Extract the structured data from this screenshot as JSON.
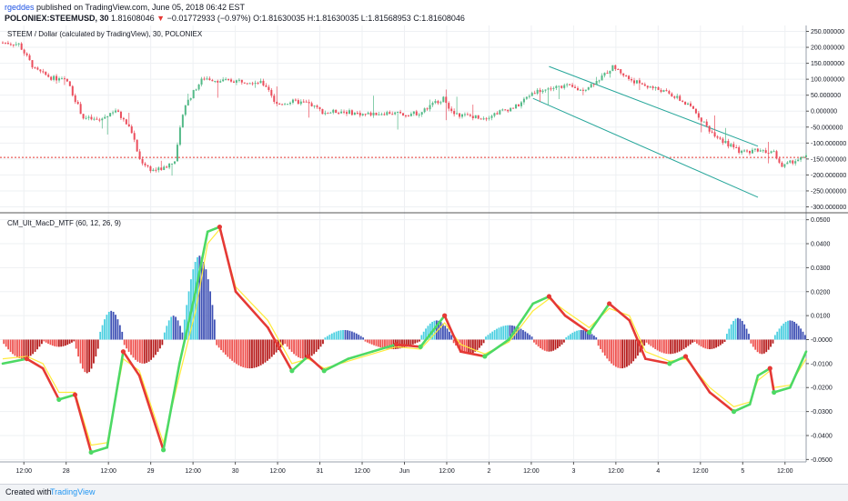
{
  "header": {
    "author": "rgeddes",
    "published_text": "published on TradingView.com, June 05, 2018 06:42 EST",
    "symbol": "POLONIEX:STEEMUSD, 30",
    "price": "1.81608046",
    "arrow": "▼",
    "change": "−0.01772933 (−0.97%)",
    "ohlc": "O:1.81630035 H:1.81630035 L:1.81568953 C:1.81608046"
  },
  "footer": {
    "created_with": "Created with",
    "logo": "TradingView"
  },
  "colors": {
    "up": "#53b987",
    "down": "#eb4d5c",
    "macd_up": "#4cd964",
    "macd_down": "#e53935",
    "signal": "#ffeb3b",
    "hist_pos_dark": "#3f51b5",
    "hist_pos_light": "#4dd0e1",
    "hist_neg_dark": "#b71c1c",
    "hist_neg_light": "#ef5350",
    "channel": "#26a69a",
    "price_line": "#e53935"
  },
  "chart_data": [
    {
      "type": "candlestick",
      "title": "STEEM / Dollar (calculated by TradingView), 30, POLONIEX",
      "y_tick_labels": [
        "250.000000",
        "200.000000",
        "150.000000",
        "100.000000",
        "50.000000",
        "0.000000",
        "-50.000000",
        "-100.000000",
        "-150.000000",
        "-200.000000",
        "-250.000000",
        "-300.000000"
      ],
      "ylim": [
        -310,
        260
      ],
      "price_line": -145,
      "trend_channel": {
        "upper": [
          [
            0.68,
            140
          ],
          [
            0.94,
            -110
          ]
        ],
        "lower": [
          [
            0.66,
            40
          ],
          [
            0.94,
            -270
          ]
        ]
      },
      "close_path": [
        [
          0.0,
          215
        ],
        [
          0.02,
          210
        ],
        [
          0.04,
          130
        ],
        [
          0.06,
          105
        ],
        [
          0.08,
          95
        ],
        [
          0.1,
          -20
        ],
        [
          0.12,
          -30
        ],
        [
          0.14,
          5
        ],
        [
          0.16,
          -60
        ],
        [
          0.17,
          -150
        ],
        [
          0.185,
          -185
        ],
        [
          0.2,
          -180
        ],
        [
          0.215,
          -150
        ],
        [
          0.225,
          10
        ],
        [
          0.24,
          70
        ],
        [
          0.25,
          105
        ],
        [
          0.27,
          95
        ],
        [
          0.3,
          95
        ],
        [
          0.32,
          90
        ],
        [
          0.33,
          75
        ],
        [
          0.34,
          20
        ],
        [
          0.36,
          30
        ],
        [
          0.38,
          25
        ],
        [
          0.4,
          -5
        ],
        [
          0.42,
          0
        ],
        [
          0.45,
          -10
        ],
        [
          0.48,
          -5
        ],
        [
          0.5,
          -10
        ],
        [
          0.52,
          -5
        ],
        [
          0.54,
          30
        ],
        [
          0.55,
          40
        ],
        [
          0.56,
          -10
        ],
        [
          0.58,
          -15
        ],
        [
          0.6,
          -20
        ],
        [
          0.62,
          0
        ],
        [
          0.64,
          15
        ],
        [
          0.66,
          60
        ],
        [
          0.68,
          70
        ],
        [
          0.7,
          80
        ],
        [
          0.72,
          65
        ],
        [
          0.74,
          95
        ],
        [
          0.76,
          140
        ],
        [
          0.78,
          100
        ],
        [
          0.8,
          80
        ],
        [
          0.82,
          65
        ],
        [
          0.84,
          40
        ],
        [
          0.86,
          5
        ],
        [
          0.88,
          -60
        ],
        [
          0.9,
          -100
        ],
        [
          0.92,
          -130
        ],
        [
          0.94,
          -120
        ],
        [
          0.96,
          -130
        ],
        [
          0.97,
          -175
        ],
        [
          0.985,
          -155
        ],
        [
          1.0,
          -145
        ]
      ]
    },
    {
      "type": "line",
      "title": "CM_Ult_MacD_MTF (60, 12, 26, 9)",
      "y_tick_labels": [
        "0.0500",
        "0.0400",
        "0.0300",
        "0.0200",
        "0.0100",
        "-0.0000",
        "-0.0100",
        "-0.0200",
        "-0.0300",
        "-0.0400",
        "-0.0500"
      ],
      "ylim": [
        -0.051,
        0.051
      ],
      "x_tick_labels": [
        "12:00",
        "28",
        "12:00",
        "29",
        "12:00",
        "30",
        "12:00",
        "31",
        "12:00",
        "Jun",
        "12:00",
        "2",
        "12:00",
        "3",
        "12:00",
        "4",
        "12:00",
        "5",
        "12:00"
      ],
      "series": [
        {
          "points": [
            [
              0.0,
              -0.01
            ],
            [
              0.03,
              -0.008
            ],
            [
              0.05,
              -0.012
            ],
            [
              0.07,
              -0.025
            ],
            [
              0.09,
              -0.023
            ],
            [
              0.11,
              -0.047
            ],
            [
              0.13,
              -0.045
            ],
            [
              0.15,
              -0.005
            ],
            [
              0.17,
              -0.015
            ],
            [
              0.2,
              -0.046
            ],
            [
              0.22,
              -0.01
            ],
            [
              0.24,
              0.02
            ],
            [
              0.255,
              0.045
            ],
            [
              0.27,
              0.047
            ],
            [
              0.29,
              0.02
            ],
            [
              0.33,
              0.005
            ],
            [
              0.36,
              -0.013
            ],
            [
              0.38,
              -0.007
            ],
            [
              0.4,
              -0.013
            ],
            [
              0.43,
              -0.008
            ],
            [
              0.46,
              -0.005
            ],
            [
              0.49,
              -0.002
            ],
            [
              0.52,
              -0.003
            ],
            [
              0.55,
              0.01
            ],
            [
              0.57,
              -0.005
            ],
            [
              0.6,
              -0.007
            ],
            [
              0.63,
              0.0
            ],
            [
              0.66,
              0.015
            ],
            [
              0.68,
              0.018
            ],
            [
              0.7,
              0.01
            ],
            [
              0.73,
              0.003
            ],
            [
              0.755,
              0.015
            ],
            [
              0.78,
              0.008
            ],
            [
              0.8,
              -0.008
            ],
            [
              0.83,
              -0.01
            ],
            [
              0.85,
              -0.007
            ],
            [
              0.88,
              -0.022
            ],
            [
              0.91,
              -0.03
            ],
            [
              0.93,
              -0.027
            ],
            [
              0.94,
              -0.015
            ],
            [
              0.955,
              -0.012
            ],
            [
              0.96,
              -0.022
            ],
            [
              0.98,
              -0.02
            ],
            [
              1.0,
              -0.005
            ]
          ]
        },
        {
          "points": [
            [
              0.0,
              -0.008
            ],
            [
              0.03,
              -0.007
            ],
            [
              0.05,
              -0.01
            ],
            [
              0.07,
              -0.022
            ],
            [
              0.09,
              -0.022
            ],
            [
              0.11,
              -0.044
            ],
            [
              0.13,
              -0.043
            ],
            [
              0.15,
              -0.008
            ],
            [
              0.17,
              -0.013
            ],
            [
              0.2,
              -0.043
            ],
            [
              0.22,
              -0.015
            ],
            [
              0.24,
              0.012
            ],
            [
              0.255,
              0.04
            ],
            [
              0.27,
              0.046
            ],
            [
              0.29,
              0.022
            ],
            [
              0.33,
              0.008
            ],
            [
              0.36,
              -0.01
            ],
            [
              0.38,
              -0.008
            ],
            [
              0.4,
              -0.012
            ],
            [
              0.43,
              -0.009
            ],
            [
              0.46,
              -0.006
            ],
            [
              0.49,
              -0.003
            ],
            [
              0.52,
              -0.004
            ],
            [
              0.55,
              0.007
            ],
            [
              0.57,
              -0.002
            ],
            [
              0.6,
              -0.006
            ],
            [
              0.63,
              -0.001
            ],
            [
              0.66,
              0.012
            ],
            [
              0.68,
              0.017
            ],
            [
              0.7,
              0.012
            ],
            [
              0.73,
              0.005
            ],
            [
              0.755,
              0.013
            ],
            [
              0.78,
              0.01
            ],
            [
              0.8,
              -0.005
            ],
            [
              0.83,
              -0.009
            ],
            [
              0.85,
              -0.008
            ],
            [
              0.88,
              -0.02
            ],
            [
              0.91,
              -0.028
            ],
            [
              0.93,
              -0.026
            ],
            [
              0.94,
              -0.017
            ],
            [
              0.955,
              -0.013
            ],
            [
              0.96,
              -0.02
            ],
            [
              0.98,
              -0.019
            ],
            [
              1.0,
              -0.008
            ]
          ]
        }
      ],
      "histogram": [
        {
          "from": 0.0,
          "to": 0.05,
          "v": -0.008
        },
        {
          "from": 0.05,
          "to": 0.09,
          "v": -0.003
        },
        {
          "from": 0.09,
          "to": 0.12,
          "v": -0.014
        },
        {
          "from": 0.12,
          "to": 0.15,
          "v": 0.012
        },
        {
          "from": 0.15,
          "to": 0.2,
          "v": -0.01
        },
        {
          "from": 0.2,
          "to": 0.225,
          "v": 0.01
        },
        {
          "from": 0.225,
          "to": 0.265,
          "v": 0.035
        },
        {
          "from": 0.265,
          "to": 0.35,
          "v": -0.012
        },
        {
          "from": 0.35,
          "to": 0.4,
          "v": -0.008
        },
        {
          "from": 0.4,
          "to": 0.45,
          "v": 0.004
        },
        {
          "from": 0.45,
          "to": 0.52,
          "v": -0.004
        },
        {
          "from": 0.52,
          "to": 0.56,
          "v": 0.008
        },
        {
          "from": 0.56,
          "to": 0.6,
          "v": -0.006
        },
        {
          "from": 0.6,
          "to": 0.66,
          "v": 0.006
        },
        {
          "from": 0.66,
          "to": 0.7,
          "v": -0.005
        },
        {
          "from": 0.7,
          "to": 0.74,
          "v": 0.004
        },
        {
          "from": 0.74,
          "to": 0.8,
          "v": -0.012
        },
        {
          "from": 0.8,
          "to": 0.86,
          "v": -0.006
        },
        {
          "from": 0.86,
          "to": 0.9,
          "v": -0.004
        },
        {
          "from": 0.9,
          "to": 0.93,
          "v": 0.009
        },
        {
          "from": 0.93,
          "to": 0.96,
          "v": -0.006
        },
        {
          "from": 0.96,
          "to": 1.0,
          "v": 0.008
        }
      ]
    }
  ]
}
